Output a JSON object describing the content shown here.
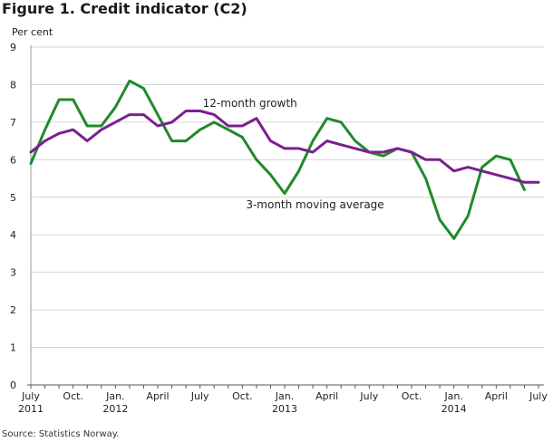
{
  "title": "Figure 1. Credit indicator (C2)",
  "source": "Source: Statistics Norway.",
  "chart_data": {
    "type": "line",
    "title": "Figure 1. Credit indicator (C2)",
    "ylabel": "Per cent",
    "ylim": [
      0,
      9
    ],
    "yticks": [
      0,
      1,
      2,
      3,
      4,
      5,
      6,
      7,
      8,
      9
    ],
    "grid": "horizontal",
    "x_start": "2011-07",
    "x_end": "2014-07",
    "x_ticks": [
      {
        "month": "2011-07",
        "label": "July",
        "year": "2011"
      },
      {
        "month": "2011-10",
        "label": "Oct.",
        "year": ""
      },
      {
        "month": "2012-01",
        "label": "Jan.",
        "year": "2012"
      },
      {
        "month": "2012-04",
        "label": "April",
        "year": ""
      },
      {
        "month": "2012-07",
        "label": "July",
        "year": ""
      },
      {
        "month": "2012-10",
        "label": "Oct.",
        "year": ""
      },
      {
        "month": "2013-01",
        "label": "Jan.",
        "year": "2013"
      },
      {
        "month": "2013-04",
        "label": "April",
        "year": ""
      },
      {
        "month": "2013-07",
        "label": "July",
        "year": ""
      },
      {
        "month": "2013-10",
        "label": "Oct.",
        "year": ""
      },
      {
        "month": "2014-01",
        "label": "Jan.",
        "year": "2014"
      },
      {
        "month": "2014-04",
        "label": "April",
        "year": ""
      },
      {
        "month": "2014-07",
        "label": "July",
        "year": ""
      }
    ],
    "series": [
      {
        "name": "12-month growth",
        "color": "#7b1f8f",
        "months": [
          "2011-07",
          "2011-08",
          "2011-09",
          "2011-10",
          "2011-11",
          "2011-12",
          "2012-01",
          "2012-02",
          "2012-03",
          "2012-04",
          "2012-05",
          "2012-06",
          "2012-07",
          "2012-08",
          "2012-09",
          "2012-10",
          "2012-11",
          "2012-12",
          "2013-01",
          "2013-02",
          "2013-03",
          "2013-04",
          "2013-05",
          "2013-06",
          "2013-07",
          "2013-08",
          "2013-09",
          "2013-10",
          "2013-11",
          "2013-12",
          "2014-01",
          "2014-02",
          "2014-03",
          "2014-04",
          "2014-05",
          "2014-06",
          "2014-07"
        ],
        "values": [
          6.2,
          6.5,
          6.7,
          6.8,
          6.5,
          6.8,
          7.0,
          7.2,
          7.2,
          6.9,
          7.0,
          7.3,
          7.3,
          7.2,
          6.9,
          6.9,
          7.1,
          6.5,
          6.3,
          6.3,
          6.2,
          6.5,
          6.4,
          6.3,
          6.2,
          6.2,
          6.3,
          6.2,
          6.0,
          6.0,
          5.7,
          5.8,
          5.7,
          5.6,
          5.5,
          5.4,
          5.4
        ]
      },
      {
        "name": "3-month moving average",
        "color": "#1f8a2a",
        "months": [
          "2011-07",
          "2011-08",
          "2011-09",
          "2011-10",
          "2011-11",
          "2011-12",
          "2012-01",
          "2012-02",
          "2012-03",
          "2012-04",
          "2012-05",
          "2012-06",
          "2012-07",
          "2012-08",
          "2012-09",
          "2012-10",
          "2012-11",
          "2012-12",
          "2013-01",
          "2013-02",
          "2013-03",
          "2013-04",
          "2013-05",
          "2013-06",
          "2013-07",
          "2013-08",
          "2013-09",
          "2013-10",
          "2013-11",
          "2013-12",
          "2014-01",
          "2014-02",
          "2014-03",
          "2014-04",
          "2014-05",
          "2014-06"
        ],
        "values": [
          5.9,
          6.8,
          7.6,
          7.6,
          6.9,
          6.9,
          7.4,
          8.1,
          7.9,
          7.2,
          6.5,
          6.5,
          6.8,
          7.0,
          6.8,
          6.6,
          6.0,
          5.6,
          5.1,
          5.7,
          6.5,
          7.1,
          7.0,
          6.5,
          6.2,
          6.1,
          6.3,
          6.2,
          5.5,
          4.4,
          3.9,
          4.5,
          5.8,
          6.1,
          6.0,
          5.2
        ]
      }
    ],
    "annotations": [
      {
        "text": "12-month growth",
        "series": "12-month growth"
      },
      {
        "text": "3-month moving average",
        "series": "3-month moving average"
      }
    ]
  }
}
